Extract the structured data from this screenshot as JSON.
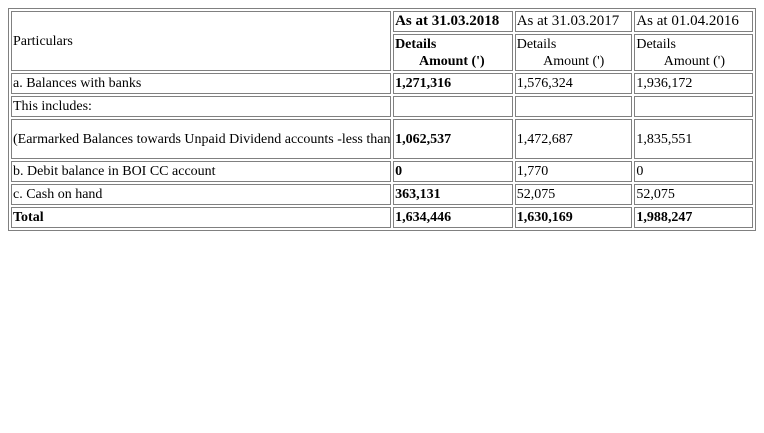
{
  "header": {
    "particulars": "Particulars",
    "col1": "As at 31.03.2018",
    "col2": "As at 31.03.2017",
    "col3": "As at 01.04.2016",
    "details": "Details",
    "amount": "Amount (')"
  },
  "rows": [
    {
      "label": "a. Balances with banks",
      "v1": "1,271,316",
      "v2": "1,576,324",
      "v3": "1,936,172"
    },
    {
      "label": "This includes:",
      "v1": "",
      "v2": "",
      "v3": ""
    },
    {
      "label": "(Earmarked Balances towards Unpaid Dividend accounts -less than seven years)",
      "v1": "1,062,537",
      "v2": "1,472,687",
      "v3": "1,835,551"
    },
    {
      "label": "b. Debit balance in BOI CC account",
      "v1": "0",
      "v2": "1,770",
      "v3": "0"
    },
    {
      "label": "c. Cash on hand",
      "v1": "363,131",
      "v2": "52,075",
      "v3": "52,075"
    },
    {
      "label": "Total",
      "v1": "1,634,446",
      "v2": "1,630,169",
      "v3": "1,988,247"
    }
  ]
}
